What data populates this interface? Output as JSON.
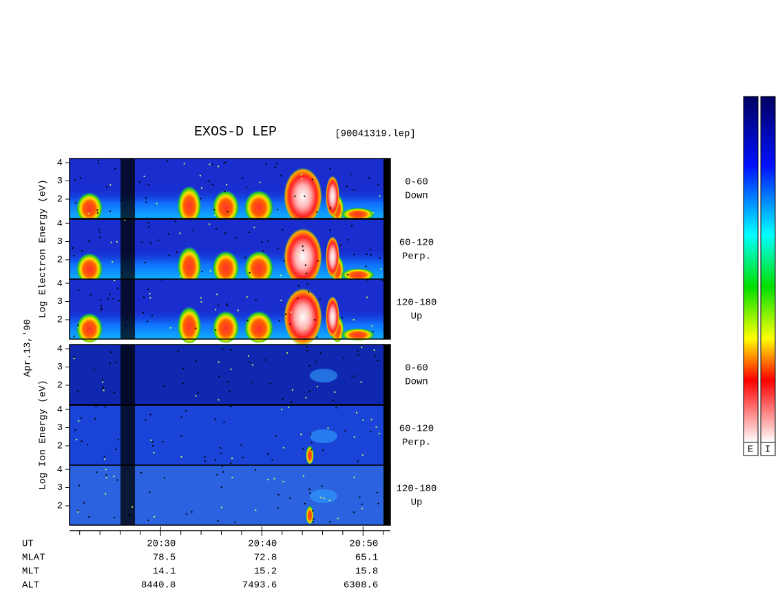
{
  "title": "EXOS-D LEP",
  "file": "[90041319.lep]",
  "date": "Apr.13,'90",
  "groups": [
    {
      "ylabel": "Log Electron Energy (eV)",
      "panels": [
        {
          "range": "0-60",
          "direction": "Down"
        },
        {
          "range": "60-120",
          "direction": "Perp."
        },
        {
          "range": "120-180",
          "direction": "Up"
        }
      ]
    },
    {
      "ylabel": "Log Ion Energy (eV)",
      "panels": [
        {
          "range": "0-60",
          "direction": "Down"
        },
        {
          "range": "60-120",
          "direction": "Perp."
        },
        {
          "range": "120-180",
          "direction": "Up"
        }
      ]
    }
  ],
  "yaxis": {
    "ylim": [
      0.94,
      4.23
    ],
    "yticks": [
      2,
      3,
      4
    ]
  },
  "xaxis": {
    "xlim": [
      1221,
      1252.7
    ],
    "xticks": [
      {
        "value": 1230,
        "label": "20:30"
      },
      {
        "value": 1240,
        "label": "20:40"
      },
      {
        "value": 1250,
        "label": "20:50"
      }
    ],
    "minor_ticks": [
      1222,
      1224,
      1226,
      1228,
      1232,
      1234,
      1236,
      1238,
      1242,
      1244,
      1246,
      1248,
      1252
    ]
  },
  "ephemeris": {
    "labels": [
      "UT",
      "MLAT",
      "MLT",
      "ALT"
    ],
    "rows": [
      [
        "78.5",
        "72.8",
        "65.1"
      ],
      [
        "14.1",
        "15.2",
        "15.8"
      ],
      [
        "8440.8",
        "7493.6",
        "6308.6"
      ]
    ]
  },
  "colorbars": [
    "E",
    "I"
  ]
}
